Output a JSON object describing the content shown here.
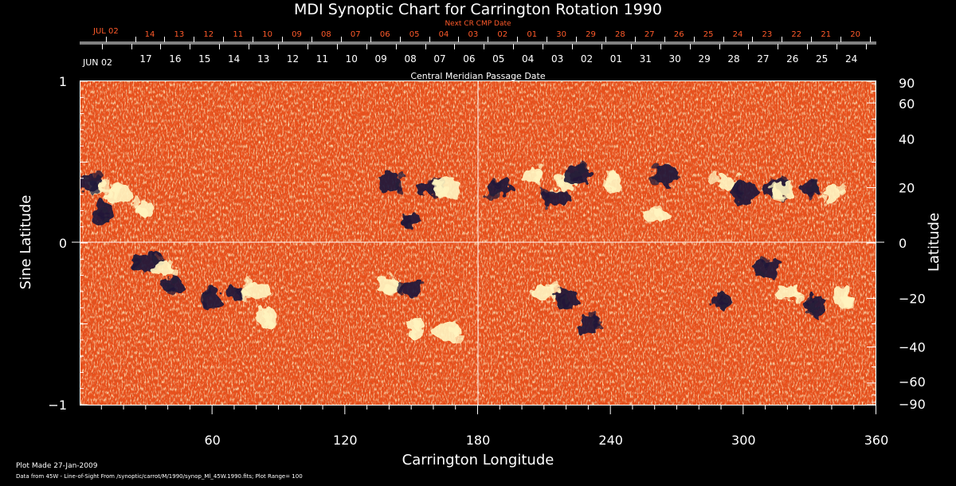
{
  "chart_data": {
    "type": "heatmap",
    "title": "MDI Synoptic Chart for Carrington Rotation 1990",
    "next_cr_label": "Next CR CMP Date",
    "cmp_label": "Central Meridian Passage Date",
    "xlabel": "Carrington Longitude",
    "ylabel_left": "Sine Latitude",
    "ylabel_right": "Latitude",
    "xlim": [
      0,
      360
    ],
    "ylim": [
      -1,
      1
    ],
    "x_ticks": [
      60,
      120,
      180,
      240,
      300,
      360
    ],
    "y_ticks_left": [
      {
        "v": 1,
        "label": "1"
      },
      {
        "v": 0,
        "label": "0"
      },
      {
        "v": -1,
        "label": "−1"
      }
    ],
    "y_ticks_right": [
      90,
      60,
      40,
      20,
      0,
      -20,
      -40,
      -60,
      -90
    ],
    "date_axis_top": {
      "month_label": "JUL 02",
      "days": [
        "14",
        "13",
        "12",
        "11",
        "10",
        "09",
        "08",
        "07",
        "06",
        "05",
        "04",
        "03",
        "02",
        "01",
        "30",
        "29",
        "28",
        "27",
        "26",
        "25",
        "24",
        "23",
        "22",
        "21",
        "20"
      ]
    },
    "date_axis_bottom": {
      "month_label": "JUN 02",
      "days": [
        "17",
        "16",
        "15",
        "14",
        "13",
        "12",
        "11",
        "10",
        "09",
        "08",
        "07",
        "06",
        "05",
        "04",
        "03",
        "02",
        "01",
        "31",
        "30",
        "29",
        "28",
        "27",
        "26",
        "25",
        "24"
      ]
    },
    "footer": [
      "Plot Made 27-Jan-2009",
      "Data from 45W - Line-of-Sight From /synoptic/carrot/M/1990/synop_Ml_45W.1990.fits; Plot Range=  100"
    ],
    "colors": {
      "background": "#000000",
      "field_base": "#e8501c",
      "positive_polarity": "#fff4c0",
      "negative_polarity": "#201a3a",
      "axis": "#ffffff",
      "next_cr_text": "#ff5a2a"
    },
    "active_regions": [
      {
        "lon": 8,
        "lat": 20,
        "p": 1
      },
      {
        "lon": 18,
        "lat": 18,
        "p": 1
      },
      {
        "lon": 4,
        "lat": 22,
        "p": -1
      },
      {
        "lon": 30,
        "lat": 12,
        "p": 1
      },
      {
        "lon": 10,
        "lat": 11,
        "p": -1
      },
      {
        "lon": 30,
        "lat": -7,
        "p": -1
      },
      {
        "lon": 42,
        "lat": -15,
        "p": -1
      },
      {
        "lon": 38,
        "lat": -9,
        "p": 1
      },
      {
        "lon": 60,
        "lat": -20,
        "p": -1
      },
      {
        "lon": 70,
        "lat": -18,
        "p": -1
      },
      {
        "lon": 80,
        "lat": -17,
        "p": 1
      },
      {
        "lon": 85,
        "lat": -28,
        "p": 1
      },
      {
        "lon": 140,
        "lat": 22,
        "p": -1
      },
      {
        "lon": 150,
        "lat": 8,
        "p": -1
      },
      {
        "lon": 158,
        "lat": 20,
        "p": -1
      },
      {
        "lon": 166,
        "lat": 20,
        "p": 1
      },
      {
        "lon": 140,
        "lat": -15,
        "p": 1
      },
      {
        "lon": 150,
        "lat": -16,
        "p": -1
      },
      {
        "lon": 152,
        "lat": -32,
        "p": 1
      },
      {
        "lon": 166,
        "lat": -33,
        "p": 1
      },
      {
        "lon": 190,
        "lat": 20,
        "p": -1
      },
      {
        "lon": 205,
        "lat": 25,
        "p": 1
      },
      {
        "lon": 220,
        "lat": 22,
        "p": 1
      },
      {
        "lon": 225,
        "lat": 25,
        "p": -1
      },
      {
        "lon": 210,
        "lat": -18,
        "p": 1
      },
      {
        "lon": 220,
        "lat": -20,
        "p": -1
      },
      {
        "lon": 230,
        "lat": -30,
        "p": -1
      },
      {
        "lon": 242,
        "lat": 22,
        "p": 1
      },
      {
        "lon": 260,
        "lat": 10,
        "p": 1
      },
      {
        "lon": 265,
        "lat": 25,
        "p": -1
      },
      {
        "lon": 290,
        "lat": -21,
        "p": -1
      },
      {
        "lon": 292,
        "lat": 22,
        "p": 1
      },
      {
        "lon": 300,
        "lat": 18,
        "p": -1
      },
      {
        "lon": 315,
        "lat": 20,
        "p": -1
      },
      {
        "lon": 318,
        "lat": 19,
        "p": 1
      },
      {
        "lon": 330,
        "lat": 20,
        "p": -1
      },
      {
        "lon": 340,
        "lat": 18,
        "p": 1
      },
      {
        "lon": 310,
        "lat": -9,
        "p": -1
      },
      {
        "lon": 320,
        "lat": -18,
        "p": 1
      },
      {
        "lon": 333,
        "lat": -23,
        "p": -1
      },
      {
        "lon": 345,
        "lat": -20,
        "p": 1
      },
      {
        "lon": 215,
        "lat": 16,
        "p": -1
      }
    ]
  }
}
